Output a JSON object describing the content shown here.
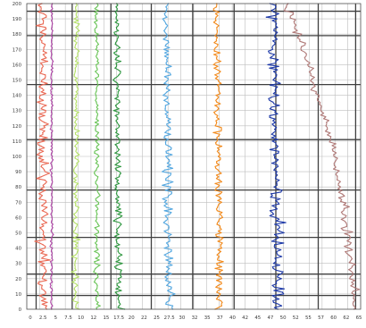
{
  "chart_data": {
    "type": "scatter",
    "title": "",
    "xlabel": "",
    "ylabel": "",
    "xlim": [
      0,
      67
    ],
    "ylim": [
      0,
      200
    ],
    "grid": true,
    "legend": "none",
    "x_ticks": [
      "0",
      "2.5",
      "5",
      "7.5",
      "10",
      "12",
      "15",
      "17.5",
      "20",
      "22",
      "25",
      "27.5",
      "30",
      "32",
      "35",
      "37",
      "40",
      "42",
      "45",
      "47",
      "50",
      "52",
      "55",
      "57",
      "60",
      "62",
      "65"
    ],
    "y_ticks": [
      "0",
      "10",
      "20",
      "30",
      "40",
      "50",
      "60",
      "70",
      "80",
      "90",
      "100",
      "110",
      "120",
      "130",
      "140",
      "150",
      "160",
      "170",
      "180",
      "190",
      "200"
    ],
    "series": [
      {
        "color": "#ea6a55",
        "x_center": [
          3.3,
          3.1
        ],
        "y_range": [
          0,
          200
        ],
        "spread": 1.1
      },
      {
        "color": "#b04aa8",
        "x_center": [
          5.0,
          5.0
        ],
        "y_range": [
          0,
          200
        ],
        "spread": 0.25
      },
      {
        "color": "#b5e06a",
        "x_center": [
          9.8,
          10.0
        ],
        "y_range": [
          0,
          200
        ],
        "spread": 0.6
      },
      {
        "color": "#6cc55a",
        "x_center": [
          14.0,
          14.0
        ],
        "y_range": [
          0,
          200
        ],
        "spread": 0.55
      },
      {
        "color": "#2f9740",
        "x_center": [
          18.5,
          18.0
        ],
        "y_range": [
          0,
          200
        ],
        "spread": 0.75
      },
      {
        "color": "#56a8e0",
        "x_center": [
          28.6,
          28.0
        ],
        "y_range": [
          0,
          200
        ],
        "spread": 0.9
      },
      {
        "color": "#f28a1c",
        "x_center": [
          38.8,
          38.0
        ],
        "y_range": [
          0,
          200
        ],
        "spread": 0.9
      },
      {
        "color": "#1e3aa8",
        "x_center": [
          50.4,
          49.5
        ],
        "y_range": [
          0,
          200
        ],
        "spread": 1.3
      },
      {
        "color": "#b07a78",
        "x_center": [
          65.5,
          52.0
        ],
        "y_range": [
          0,
          200
        ],
        "spread": 0.9,
        "shape": "curve"
      }
    ]
  }
}
